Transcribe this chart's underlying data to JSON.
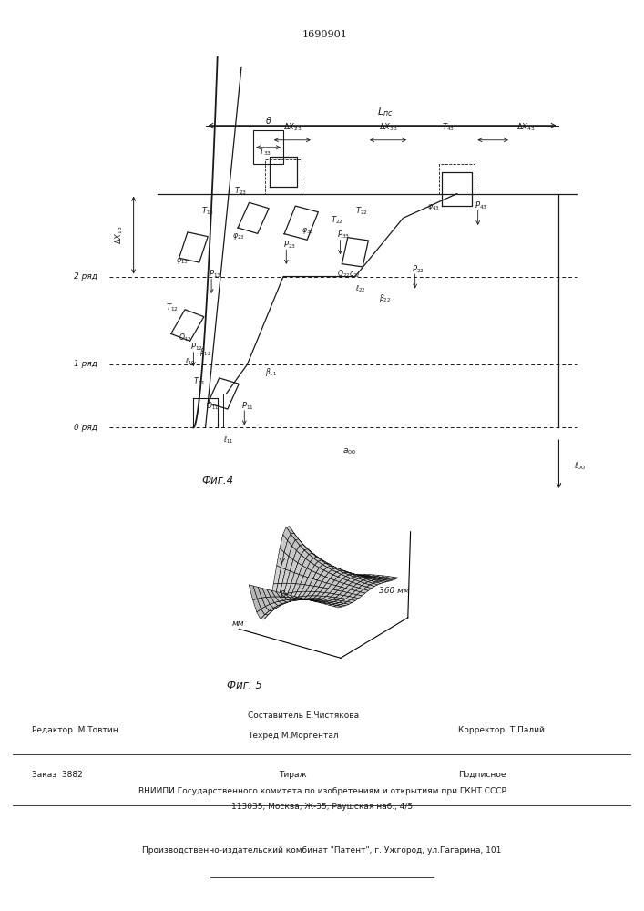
{
  "patent_number": "1690901",
  "fig4_label": "Фиг.4",
  "fig5_label": "Фиг. 5",
  "fig5_xlabel": "360 мм",
  "fig5_ylabel": "мм",
  "fig5_zlabel": "γ",
  "fig5_origin": "0",
  "editor_line": "Редактор  М.Товтин",
  "composer_line": "Составитель Е.Чистякова",
  "techred_line": "Техред М.Моргентал",
  "corrector_line": "Корректор  Т.Палий",
  "order_line": "Заказ  3882",
  "tirage_line": "Тираж",
  "podpisnoe_line": "Подписное",
  "vniipи_line": "ВНИИПИ Государственного комитета по изобретениям и открытиям при ГКНТ СССР",
  "address_line": "113035, Москва, Ж-35, Раушская наб., 4/5",
  "factory_line": "Производственно-издательский комбинат \"Патент\", г. Ужгород, ул.Гагарина, 101",
  "bg_color": "#ffffff",
  "line_color": "#1a1a1a"
}
